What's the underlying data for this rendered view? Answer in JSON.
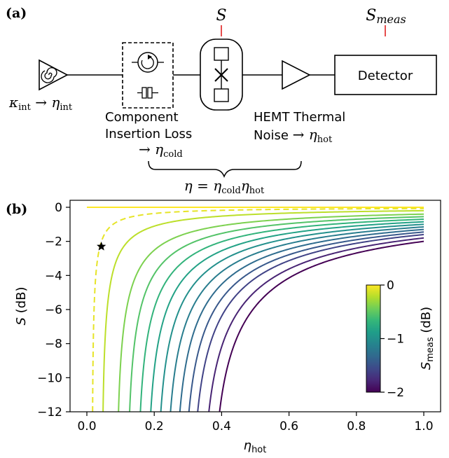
{
  "panel_a": {
    "label": "(a)",
    "amp_source_label": "κ_int → η_int",
    "s_marker_label": "S",
    "smeas_marker_label": "S_meas",
    "detector_label": "Detector",
    "component_label_1": "Component",
    "component_label_2": "Insertion Loss",
    "component_label_3": "→ η_cold",
    "hemt_label_1": "HEMT Thermal",
    "hemt_label_2": "Noise → η_hot",
    "eta_equation": "η = η_cold η_hot",
    "marker_color": "#e02020"
  },
  "panel_b": {
    "label": "(b)"
  },
  "chart_data": {
    "type": "line",
    "xlabel": "η_hot",
    "ylabel": "S (dB)",
    "xlim": [
      -0.05,
      1.05
    ],
    "ylim": [
      -12,
      0.5
    ],
    "xticks": [
      "0.0",
      "0.2",
      "0.4",
      "0.6",
      "0.8",
      "1.0"
    ],
    "yticks": [
      "0",
      "−2",
      "−4",
      "−6",
      "−8",
      "−10",
      "−12"
    ],
    "model": "S = 10·log10(1 − (1 − 10^(Smeas/10)) / η_hot)",
    "series": [
      {
        "smeas": 0.0,
        "style": "solid"
      },
      {
        "smeas": -0.07,
        "style": "dashed"
      },
      {
        "smeas": -0.2,
        "style": "solid"
      },
      {
        "smeas": -0.4,
        "style": "solid"
      },
      {
        "smeas": -0.55,
        "style": "solid"
      },
      {
        "smeas": -0.7,
        "style": "solid"
      },
      {
        "smeas": -0.85,
        "style": "solid"
      },
      {
        "smeas": -1.0,
        "style": "solid"
      },
      {
        "smeas": -1.15,
        "style": "solid"
      },
      {
        "smeas": -1.3,
        "style": "solid"
      },
      {
        "smeas": -1.45,
        "style": "solid"
      },
      {
        "smeas": -1.6,
        "style": "solid"
      },
      {
        "smeas": -1.8,
        "style": "solid"
      },
      {
        "smeas": -2.0,
        "style": "solid"
      }
    ],
    "star_point": {
      "x": 0.043,
      "y": -2.3
    },
    "colorbar": {
      "label": "S_meas (dB)",
      "range": [
        -2,
        0
      ],
      "ticks": [
        "0",
        "−1",
        "−2"
      ],
      "colors": [
        "#440154",
        "#482878",
        "#3e4989",
        "#31688e",
        "#26828e",
        "#1f9e89",
        "#35b779",
        "#6ece58",
        "#b5de2b",
        "#fde725"
      ]
    },
    "grid": false
  }
}
